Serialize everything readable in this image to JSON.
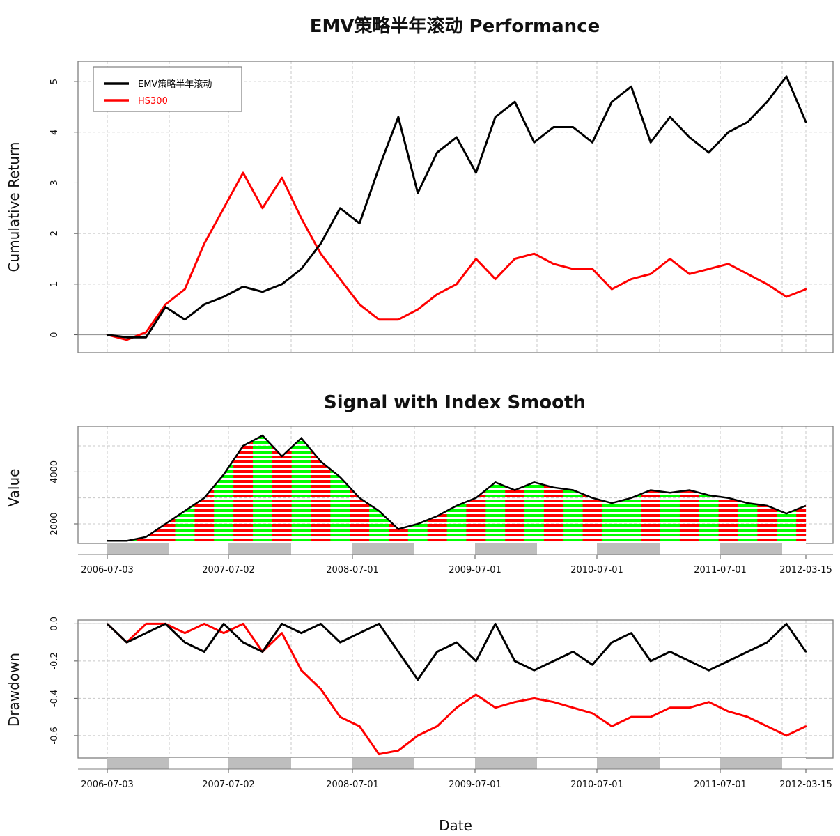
{
  "chart_data": [
    {
      "type": "line",
      "title": "EMV策略半年滚动 Performance",
      "ylabel": "Cumulative Return",
      "ylim": [
        -0.35,
        5.4
      ],
      "yticks": [
        0,
        1,
        2,
        3,
        4,
        5
      ],
      "grid": true,
      "legend": "top-left",
      "date_range": [
        "2006-07-03",
        "2012-03-15"
      ],
      "x": [
        "2006-07",
        "2006-09",
        "2006-11",
        "2007-01",
        "2007-03",
        "2007-05",
        "2007-07",
        "2007-09",
        "2007-10",
        "2007-12",
        "2008-01",
        "2008-03",
        "2008-05",
        "2008-07",
        "2008-09",
        "2008-11",
        "2009-01",
        "2009-03",
        "2009-05",
        "2009-07",
        "2009-08",
        "2009-10",
        "2009-12",
        "2010-02",
        "2010-04",
        "2010-06",
        "2010-08",
        "2010-10",
        "2010-12",
        "2011-02",
        "2011-04",
        "2011-06",
        "2011-08",
        "2011-10",
        "2011-12",
        "2012-02",
        "2012-03"
      ],
      "series": [
        {
          "name": "EMV策略半年滚动",
          "color": "#000000",
          "values": [
            0.0,
            -0.05,
            -0.05,
            0.55,
            0.3,
            0.6,
            0.75,
            0.95,
            0.85,
            1.0,
            1.3,
            1.8,
            2.5,
            2.2,
            3.3,
            4.3,
            2.8,
            3.6,
            3.9,
            3.2,
            4.3,
            4.6,
            3.8,
            4.1,
            4.1,
            3.8,
            4.6,
            4.9,
            3.8,
            4.3,
            3.9,
            3.6,
            4.0,
            4.2,
            4.6,
            5.1,
            4.2
          ]
        },
        {
          "name": "HS300",
          "color": "#ff0000",
          "values": [
            0.0,
            -0.1,
            0.05,
            0.6,
            0.9,
            1.8,
            2.5,
            3.2,
            2.5,
            3.1,
            2.3,
            1.6,
            1.1,
            0.6,
            0.3,
            0.3,
            0.5,
            0.8,
            1.0,
            1.5,
            1.1,
            1.5,
            1.6,
            1.4,
            1.3,
            1.3,
            0.9,
            1.1,
            1.2,
            1.5,
            1.2,
            1.3,
            1.4,
            1.2,
            1.0,
            0.75,
            0.9
          ]
        }
      ]
    },
    {
      "type": "area",
      "title": "Signal with Index Smooth",
      "ylabel": "Value",
      "ylim": [
        1250,
        5750
      ],
      "yticks": [
        2000,
        4000
      ],
      "grid": true,
      "signal_colors": {
        "long": "#00ff00",
        "short": "#ff0000"
      },
      "values": [
        1350,
        1350,
        1500,
        2000,
        2500,
        3000,
        3900,
        5000,
        5400,
        4600,
        5300,
        4400,
        3800,
        3000,
        2500,
        1800,
        2000,
        2300,
        2700,
        3000,
        3600,
        3300,
        3600,
        3400,
        3300,
        3000,
        2800,
        3000,
        3300,
        3200,
        3300,
        3100,
        3000,
        2800,
        2700,
        2400,
        2700
      ],
      "signals": [
        0,
        1,
        0,
        0,
        1,
        0,
        1,
        0,
        1,
        0,
        1,
        0,
        1,
        0,
        1,
        0,
        1,
        0,
        1,
        0,
        1,
        0,
        1,
        0,
        1,
        0,
        1,
        1,
        0,
        1,
        0,
        1,
        0,
        1,
        0,
        1,
        0
      ]
    },
    {
      "type": "line",
      "ylabel": "Drawdown",
      "xlabel": "Date",
      "ylim": [
        -0.72,
        0.02
      ],
      "yticks": [
        0.0,
        -0.2,
        -0.4,
        -0.6
      ],
      "ytick_labels": [
        "0.0",
        "-0.2",
        "-0.4",
        "-0.6"
      ],
      "grid": true,
      "xtick_labels": [
        "2006-07-03",
        "2007-07-02",
        "2008-07-01",
        "2009-07-01",
        "2010-07-01",
        "2011-07-01",
        "2012-03-15"
      ],
      "series": [
        {
          "name": "EMV策略半年滚动",
          "color": "#000000",
          "values": [
            0.0,
            -0.1,
            -0.05,
            0.0,
            -0.1,
            -0.15,
            0.0,
            -0.1,
            -0.15,
            0.0,
            -0.05,
            0.0,
            -0.1,
            -0.05,
            0.0,
            -0.15,
            -0.3,
            -0.15,
            -0.1,
            -0.2,
            0.0,
            -0.2,
            -0.25,
            -0.2,
            -0.15,
            -0.22,
            -0.1,
            -0.05,
            -0.2,
            -0.15,
            -0.2,
            -0.25,
            -0.2,
            -0.15,
            -0.1,
            0.0,
            -0.15
          ]
        },
        {
          "name": "HS300",
          "color": "#ff0000",
          "values": [
            0.0,
            -0.1,
            0.0,
            0.0,
            -0.05,
            0.0,
            -0.05,
            0.0,
            -0.15,
            -0.05,
            -0.25,
            -0.35,
            -0.5,
            -0.55,
            -0.7,
            -0.68,
            -0.6,
            -0.55,
            -0.45,
            -0.38,
            -0.45,
            -0.42,
            -0.4,
            -0.42,
            -0.45,
            -0.48,
            -0.55,
            -0.5,
            -0.5,
            -0.45,
            -0.45,
            -0.42,
            -0.47,
            -0.5,
            -0.55,
            -0.6,
            -0.55
          ]
        }
      ]
    }
  ]
}
